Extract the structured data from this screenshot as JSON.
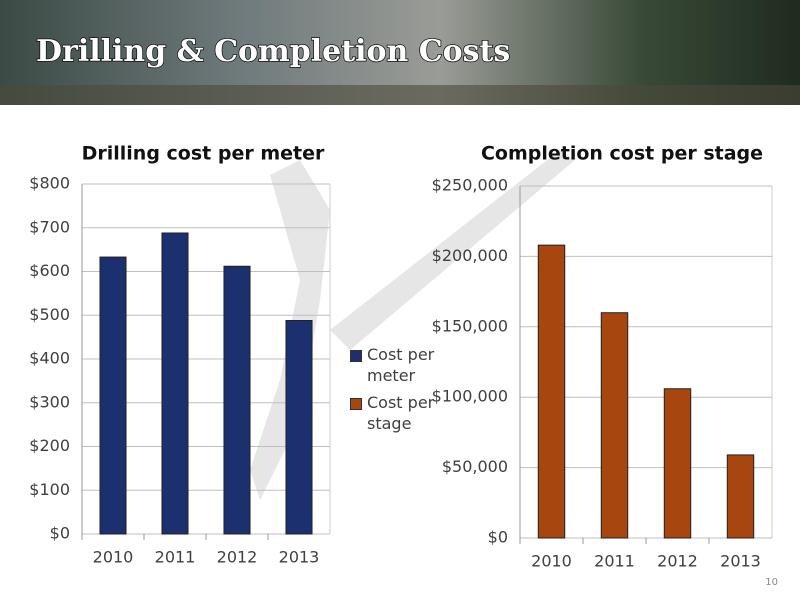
{
  "slide": {
    "title": "Drilling & Completion Costs",
    "page_number": "10"
  },
  "chart_data": [
    {
      "type": "bar",
      "title": "Drilling cost per meter",
      "categories": [
        "2010",
        "2011",
        "2012",
        "2013"
      ],
      "series": [
        {
          "name": "Cost per meter",
          "color": "#1c2f6e",
          "values": [
            633,
            688,
            612,
            488
          ]
        }
      ],
      "ylim": [
        0,
        800
      ],
      "yticks": [
        {
          "value": 0,
          "label": "$0"
        },
        {
          "value": 100,
          "label": "$100"
        },
        {
          "value": 200,
          "label": "$200"
        },
        {
          "value": 300,
          "label": "$300"
        },
        {
          "value": 400,
          "label": "$400"
        },
        {
          "value": 500,
          "label": "$500"
        },
        {
          "value": 600,
          "label": "$600"
        },
        {
          "value": 700,
          "label": "$700"
        },
        {
          "value": 800,
          "label": "$800"
        }
      ],
      "grid": true
    },
    {
      "type": "bar",
      "title": "Completion cost per stage",
      "categories": [
        "2010",
        "2011",
        "2012",
        "2013"
      ],
      "series": [
        {
          "name": "Cost per stage",
          "color": "#a8460f",
          "values": [
            208000,
            160000,
            106000,
            59000
          ]
        }
      ],
      "ylim": [
        0,
        250000
      ],
      "yticks": [
        {
          "value": 0,
          "label": "$0"
        },
        {
          "value": 50000,
          "label": "$50,000"
        },
        {
          "value": 100000,
          "label": "$100,000"
        },
        {
          "value": 150000,
          "label": "$150,000"
        },
        {
          "value": 200000,
          "label": "$200,000"
        },
        {
          "value": 250000,
          "label": "$250,000"
        }
      ],
      "grid": true
    }
  ]
}
